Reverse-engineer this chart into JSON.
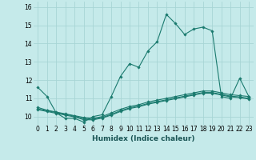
{
  "xlabel": "Humidex (Indice chaleur)",
  "background_color": "#c5eaea",
  "grid_color": "#a8d5d5",
  "line_color": "#1a7a6e",
  "x_ticks": [
    0,
    1,
    2,
    3,
    4,
    5,
    6,
    7,
    8,
    9,
    10,
    11,
    12,
    13,
    14,
    15,
    16,
    17,
    18,
    19,
    20,
    21,
    22,
    23
  ],
  "y_ticks": [
    10,
    11,
    12,
    13,
    14,
    15,
    16
  ],
  "ylim": [
    9.55,
    16.3
  ],
  "xlim": [
    -0.5,
    23.5
  ],
  "series": [
    [
      11.6,
      11.1,
      10.2,
      9.9,
      9.9,
      9.7,
      10.0,
      10.1,
      11.1,
      12.2,
      12.9,
      12.7,
      13.6,
      14.1,
      15.6,
      15.1,
      14.5,
      14.8,
      14.9,
      14.7,
      11.1,
      11.0,
      12.1,
      11.1
    ],
    [
      10.5,
      10.35,
      10.25,
      10.15,
      10.05,
      9.95,
      9.9,
      10.0,
      10.2,
      10.4,
      10.55,
      10.65,
      10.8,
      10.9,
      11.0,
      11.1,
      11.2,
      11.3,
      11.4,
      11.4,
      11.3,
      11.2,
      11.15,
      11.1
    ],
    [
      10.42,
      10.32,
      10.22,
      10.12,
      10.02,
      9.88,
      9.85,
      9.95,
      10.12,
      10.32,
      10.48,
      10.58,
      10.72,
      10.82,
      10.92,
      11.02,
      11.12,
      11.22,
      11.32,
      11.32,
      11.22,
      11.12,
      11.08,
      11.0
    ],
    [
      10.38,
      10.28,
      10.18,
      10.08,
      9.98,
      9.83,
      9.82,
      9.92,
      10.08,
      10.28,
      10.44,
      10.54,
      10.68,
      10.78,
      10.88,
      10.98,
      11.08,
      11.18,
      11.28,
      11.28,
      11.18,
      11.08,
      11.04,
      10.96
    ]
  ],
  "marker": "D",
  "markersize": 1.8,
  "linewidth": 0.8,
  "tick_fontsize": 5.5,
  "xlabel_fontsize": 6.5
}
